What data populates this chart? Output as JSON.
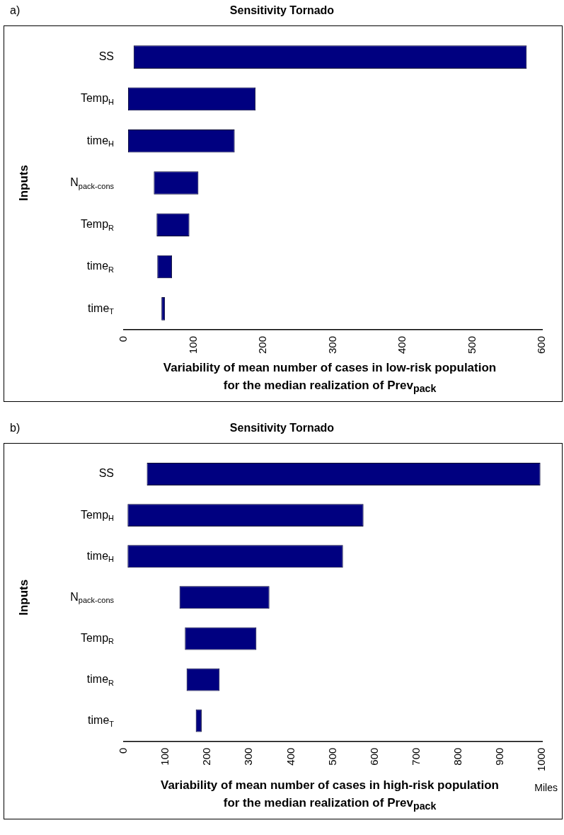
{
  "chart_data": [
    {
      "type": "bar",
      "orientation": "horizontal",
      "title": "Sensitivity Tornado",
      "ylabel": "Inputs",
      "xlabel": "Variability of mean number of cases in low-risk population\nfor the median realization of Prev$_{pack}$",
      "annotations": [
        "a)"
      ],
      "categories": [
        "SS",
        "Temp$_{H}$",
        "time$_{H}$",
        "N$_{pack-cons}$",
        "Temp$_{R}$",
        "time$_{R}$",
        "time$_{T}$"
      ],
      "base": [
        14,
        6,
        6,
        43,
        47,
        48,
        54
      ],
      "values": [
        564,
        183,
        153,
        64,
        47,
        21,
        5
      ],
      "color": "#000080",
      "xlim": [
        0,
        600
      ],
      "xticks": [
        0,
        100,
        200,
        300,
        400,
        500,
        600
      ],
      "grid": false,
      "legend": false
    },
    {
      "type": "bar",
      "orientation": "horizontal",
      "title": "Sensitivity Tornado",
      "ylabel": "Inputs",
      "xlabel": "Variability of mean number of cases in high-risk population\nfor the median realization of Prev$_{pack}$",
      "annotations": [
        "b)",
        "Miles"
      ],
      "categories": [
        "SS",
        "Temp$_{H}$",
        "time$_{H}$",
        "N$_{pack-cons}$",
        "Temp$_{R}$",
        "time$_{R}$",
        "time$_{T}$"
      ],
      "base": [
        55,
        9,
        9,
        133,
        146,
        150,
        172
      ],
      "values": [
        941,
        564,
        515,
        215,
        171,
        79,
        14
      ],
      "color": "#000080",
      "xlim": [
        0,
        1000
      ],
      "xticks": [
        0,
        100,
        200,
        300,
        400,
        500,
        600,
        700,
        800,
        900,
        1000
      ],
      "grid": false,
      "legend": false
    }
  ]
}
